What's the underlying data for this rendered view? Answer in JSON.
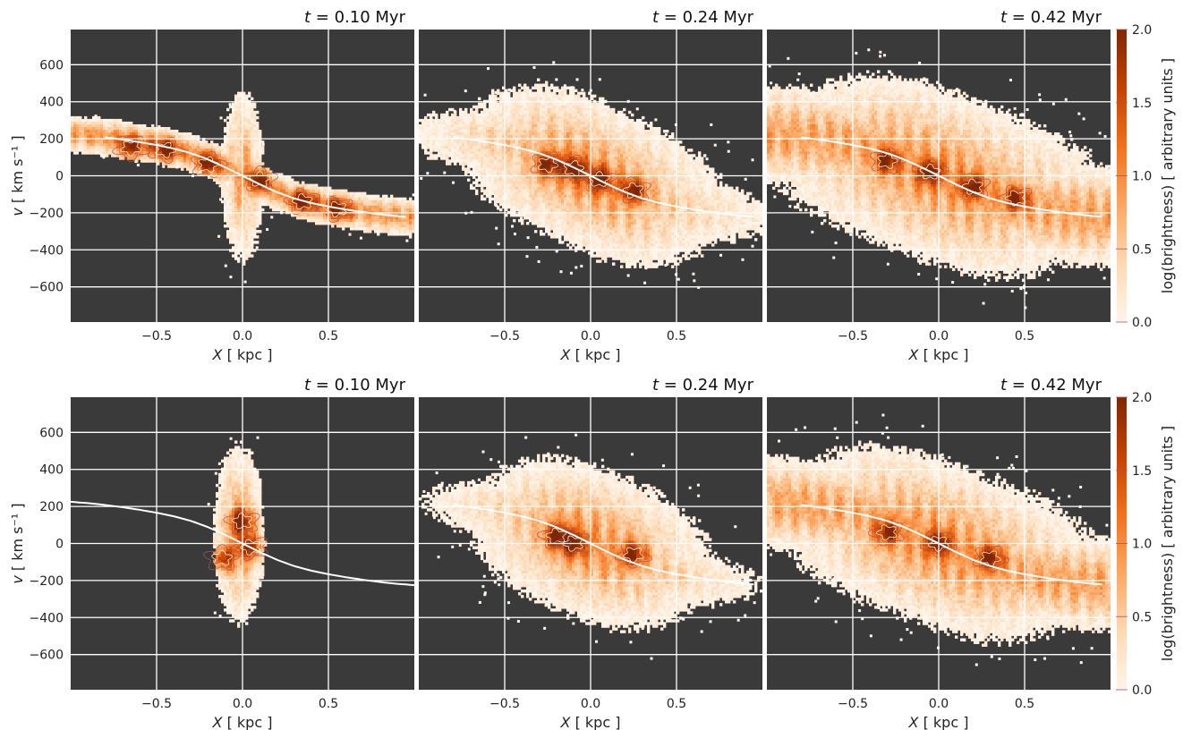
{
  "chart_data": {
    "type": "heatmap",
    "layout": "2x3 grid of position-velocity diagrams with a colorbar per row",
    "background_color": "#3a3a3a",
    "grid": true,
    "grid_color": "#ffffff",
    "curve_color": "#ffffff",
    "colormap": "Oranges",
    "colormap_stops": [
      "#fff5eb",
      "#fdd9b4",
      "#fda762",
      "#f3701b",
      "#c54102",
      "#7f2704"
    ],
    "contour_colors": [
      "#a2545e",
      "#ffffff"
    ],
    "xlabel": "X [ kpc ]",
    "ylabel": "v [ km s⁻¹ ]",
    "xlim": [
      -1.0,
      1.0
    ],
    "ylim": [
      -790,
      790
    ],
    "xticks": [
      -0.5,
      0.0,
      0.5
    ],
    "xtick_labels": [
      "−0.5",
      "0.0",
      "0.5"
    ],
    "yticks": [
      -600,
      -400,
      -200,
      0,
      200,
      400,
      600
    ],
    "ytick_labels": [
      "−600",
      "−400",
      "−200",
      "0",
      "200",
      "400",
      "600"
    ],
    "colorbar": {
      "label": "log(brightness) [ arbitrary units ]",
      "range": [
        0.0,
        2.0
      ],
      "ticks": [
        "0.0",
        "0.5",
        "1.0",
        "1.5",
        "2.0"
      ]
    },
    "rotation_curve": {
      "x": [
        -1.0,
        -0.9,
        -0.8,
        -0.7,
        -0.6,
        -0.5,
        -0.4,
        -0.3,
        -0.2,
        -0.1,
        0.0,
        0.1,
        0.2,
        0.3,
        0.4,
        0.5,
        0.6,
        0.7,
        0.8,
        0.9,
        1.0
      ],
      "v": [
        225,
        218,
        208,
        196,
        182,
        166,
        147,
        122,
        88,
        46,
        0,
        -46,
        -88,
        -122,
        -147,
        -166,
        -182,
        -196,
        -208,
        -218,
        -225
      ]
    },
    "panels": [
      {
        "row": 1,
        "col": 1,
        "title_prefix": "t",
        "title_value": " = 0.10 Myr",
        "show_ylabel": true,
        "emission": "thin inclined band along the rotation curve with a narrow vertical spike near X = 0"
      },
      {
        "row": 1,
        "col": 2,
        "title_prefix": "t",
        "title_value": " = 0.24 Myr",
        "show_ylabel": false,
        "emission": "broad diffuse cloud across the full width with peak near X = -0.2, v = 0"
      },
      {
        "row": 1,
        "col": 3,
        "title_prefix": "t",
        "title_value": " = 0.42 Myr",
        "show_ylabel": false,
        "emission": "broad diffuse cloud covering most of the panel with multiple filaments"
      },
      {
        "row": 2,
        "col": 1,
        "title_prefix": "t",
        "title_value": " = 0.10 Myr",
        "show_ylabel": true,
        "emission": "narrow vertical column at -0.2 < X < 0.15 spanning v = -500 to 700"
      },
      {
        "row": 2,
        "col": 2,
        "title_prefix": "t",
        "title_value": " = 0.24 Myr",
        "show_ylabel": false,
        "emission": "broad diffuse cloud with peak near X = -0.15, v = 0"
      },
      {
        "row": 2,
        "col": 3,
        "title_prefix": "t",
        "title_value": " = 0.42 Myr",
        "show_ylabel": false,
        "emission": "broad diffuse cloud covering most of the panel"
      }
    ]
  }
}
